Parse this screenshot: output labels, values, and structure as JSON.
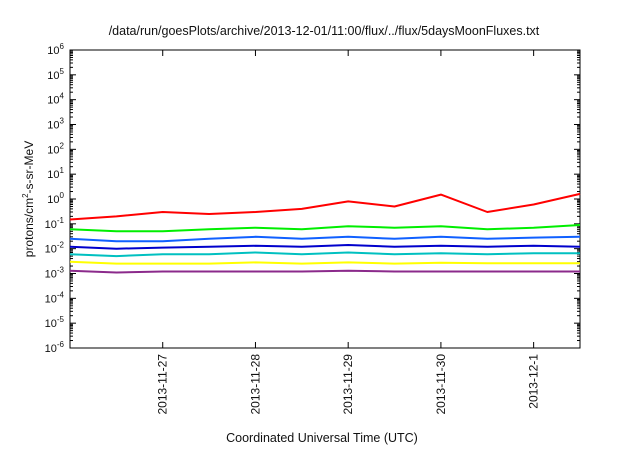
{
  "chart_data": {
    "type": "line",
    "title": "/data/run/goesPlots/archive/2013-12-01/11:00/flux/../flux/5daysMoonFluxes.txt",
    "xlabel": "Coordinated Universal Time (UTC)",
    "ylabel": {
      "prefix": "protons/cm",
      "superscript": "2",
      "suffix": "-s-sr-MeV"
    },
    "y_scale": "log",
    "ylim": [
      1e-06,
      1000000
    ],
    "y_ticks": [
      {
        "value": 1e-06,
        "base": "10",
        "exp": "-6"
      },
      {
        "value": 1e-05,
        "base": "10",
        "exp": "-5"
      },
      {
        "value": 0.0001,
        "base": "10",
        "exp": "-4"
      },
      {
        "value": 0.001,
        "base": "10",
        "exp": "-3"
      },
      {
        "value": 0.01,
        "base": "10",
        "exp": "-2"
      },
      {
        "value": 0.1,
        "base": "10",
        "exp": "-1"
      },
      {
        "value": 1,
        "base": "10",
        "exp": "0"
      },
      {
        "value": 10,
        "base": "10",
        "exp": "1"
      },
      {
        "value": 100,
        "base": "10",
        "exp": "2"
      },
      {
        "value": 1000,
        "base": "10",
        "exp": "3"
      },
      {
        "value": 10000,
        "base": "10",
        "exp": "4"
      },
      {
        "value": 100000,
        "base": "10",
        "exp": "5"
      },
      {
        "value": 1000000,
        "base": "10",
        "exp": "6"
      }
    ],
    "xlim": [
      "2013-11-26T00:00",
      "2013-12-01T12:00"
    ],
    "x_ticks": [
      "2013-11-27",
      "2013-11-28",
      "2013-11-29",
      "2013-11-30",
      "2013-12-1"
    ],
    "grid": false,
    "legend": "none",
    "series": [
      {
        "color": "#ff0000",
        "x": [
          "2013-11-26T00:00",
          "2013-11-26T12:00",
          "2013-11-27T00:00",
          "2013-11-27T12:00",
          "2013-11-28T00:00",
          "2013-11-28T12:00",
          "2013-11-29T00:00",
          "2013-11-29T12:00",
          "2013-11-30T00:00",
          "2013-11-30T12:00",
          "2013-12-01T00:00",
          "2013-12-01T12:00"
        ],
        "values": [
          0.15,
          0.2,
          0.3,
          0.25,
          0.3,
          0.4,
          0.8,
          0.5,
          1.5,
          0.3,
          0.6,
          1.6
        ]
      },
      {
        "color": "#00ee00",
        "x": [
          "2013-11-26T00:00",
          "2013-11-26T12:00",
          "2013-11-27T00:00",
          "2013-11-27T12:00",
          "2013-11-28T00:00",
          "2013-11-28T12:00",
          "2013-11-29T00:00",
          "2013-11-29T12:00",
          "2013-11-30T00:00",
          "2013-11-30T12:00",
          "2013-12-01T00:00",
          "2013-12-01T12:00"
        ],
        "values": [
          0.06,
          0.05,
          0.05,
          0.06,
          0.07,
          0.06,
          0.08,
          0.07,
          0.08,
          0.06,
          0.07,
          0.09
        ]
      },
      {
        "color": "#1060ff",
        "x": [
          "2013-11-26T00:00",
          "2013-11-26T12:00",
          "2013-11-27T00:00",
          "2013-11-27T12:00",
          "2013-11-28T00:00",
          "2013-11-28T12:00",
          "2013-11-29T00:00",
          "2013-11-29T12:00",
          "2013-11-30T00:00",
          "2013-11-30T12:00",
          "2013-12-01T00:00",
          "2013-12-01T12:00"
        ],
        "values": [
          0.025,
          0.02,
          0.02,
          0.025,
          0.03,
          0.025,
          0.03,
          0.025,
          0.03,
          0.025,
          0.028,
          0.03
        ]
      },
      {
        "color": "#0000cc",
        "x": [
          "2013-11-26T00:00",
          "2013-11-26T12:00",
          "2013-11-27T00:00",
          "2013-11-27T12:00",
          "2013-11-28T00:00",
          "2013-11-28T12:00",
          "2013-11-29T00:00",
          "2013-11-29T12:00",
          "2013-11-30T00:00",
          "2013-11-30T12:00",
          "2013-12-01T00:00",
          "2013-12-01T12:00"
        ],
        "values": [
          0.012,
          0.01,
          0.011,
          0.012,
          0.013,
          0.012,
          0.014,
          0.012,
          0.013,
          0.012,
          0.013,
          0.012
        ]
      },
      {
        "color": "#00c0c0",
        "x": [
          "2013-11-26T00:00",
          "2013-11-26T12:00",
          "2013-11-27T00:00",
          "2013-11-27T12:00",
          "2013-11-28T00:00",
          "2013-11-28T12:00",
          "2013-11-29T00:00",
          "2013-11-29T12:00",
          "2013-11-30T00:00",
          "2013-11-30T12:00",
          "2013-12-01T00:00",
          "2013-12-01T12:00"
        ],
        "values": [
          0.006,
          0.005,
          0.006,
          0.006,
          0.007,
          0.006,
          0.007,
          0.006,
          0.0065,
          0.006,
          0.0065,
          0.0065
        ]
      },
      {
        "color": "#ffff00",
        "x": [
          "2013-11-26T00:00",
          "2013-11-26T12:00",
          "2013-11-27T00:00",
          "2013-11-27T12:00",
          "2013-11-28T00:00",
          "2013-11-28T12:00",
          "2013-11-29T00:00",
          "2013-11-29T12:00",
          "2013-11-30T00:00",
          "2013-11-30T12:00",
          "2013-12-01T00:00",
          "2013-12-01T12:00"
        ],
        "values": [
          0.003,
          0.0025,
          0.0025,
          0.0025,
          0.0028,
          0.0025,
          0.0028,
          0.0025,
          0.0027,
          0.0026,
          0.0026,
          0.0026
        ]
      },
      {
        "color": "#8b2a8b",
        "x": [
          "2013-11-26T00:00",
          "2013-11-26T12:00",
          "2013-11-27T00:00",
          "2013-11-27T12:00",
          "2013-11-28T00:00",
          "2013-11-28T12:00",
          "2013-11-29T00:00",
          "2013-11-29T12:00",
          "2013-11-30T00:00",
          "2013-11-30T12:00",
          "2013-12-01T00:00",
          "2013-12-01T12:00"
        ],
        "values": [
          0.0013,
          0.0011,
          0.0012,
          0.0012,
          0.0012,
          0.0012,
          0.0013,
          0.0012,
          0.0012,
          0.0012,
          0.0012,
          0.0012
        ]
      }
    ]
  }
}
